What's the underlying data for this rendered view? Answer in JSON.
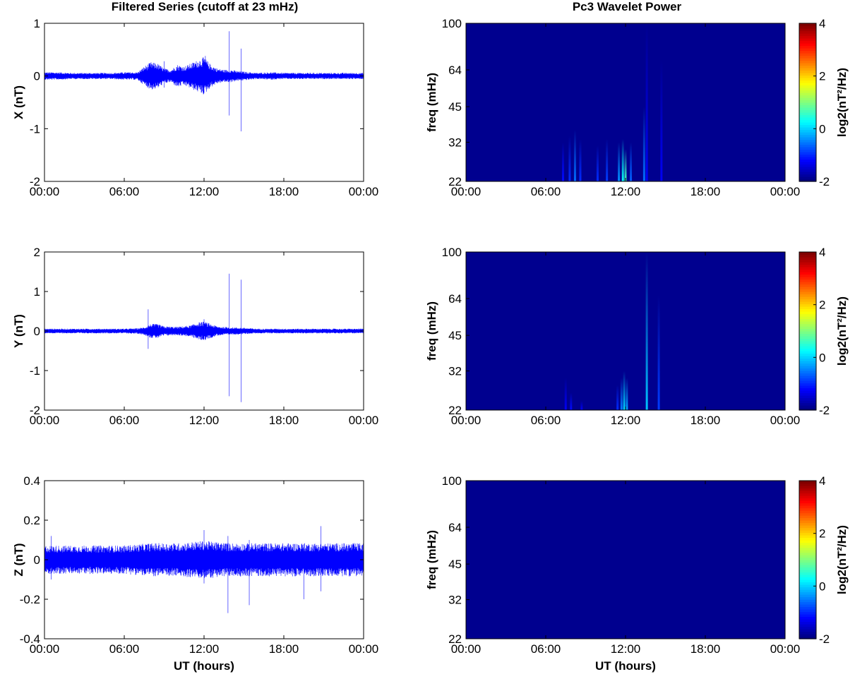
{
  "titles": {
    "left": "Filtered Series (cutoff at 23 mHz)",
    "right": "Pc3 Wavelet Power"
  },
  "colors": {
    "series_line": "#0000ff",
    "spectrogram_background": "#00008f",
    "axes": "#000000",
    "grid_background": "#ffffff"
  },
  "chart_data": [
    {
      "type": "line",
      "title": "Filtered Series (cutoff at 23 mHz)",
      "xlabel": "",
      "ylabel": "X (nT)",
      "xlim": [
        "00:00",
        "00:00"
      ],
      "xticks": [
        "00:00",
        "06:00",
        "12:00",
        "18:00",
        "00:00"
      ],
      "ylim": [
        -2,
        1
      ],
      "yticks": [
        "-2",
        "-1",
        "0",
        "1"
      ],
      "series": [
        {
          "values_note_hours": [
            0,
            1,
            2,
            3,
            4,
            5,
            6,
            7,
            7.5,
            8,
            8.5,
            9,
            9.5,
            10,
            10.5,
            11,
            11.5,
            12,
            12.5,
            13,
            13.5,
            14,
            14.5,
            15,
            16,
            17,
            18,
            19,
            20,
            21,
            22,
            23,
            24
          ],
          "envelope_nT": [
            0.06,
            0.06,
            0.05,
            0.05,
            0.05,
            0.05,
            0.06,
            0.06,
            0.15,
            0.22,
            0.2,
            0.12,
            0.1,
            0.18,
            0.15,
            0.2,
            0.25,
            0.3,
            0.18,
            0.12,
            0.1,
            0.1,
            0.08,
            0.07,
            0.05,
            0.06,
            0.05,
            0.05,
            0.05,
            0.05,
            0.05,
            0.05,
            0.05
          ],
          "spikes": [
            {
              "t": 13.9,
              "max": 0.85,
              "min": -0.75
            },
            {
              "t": 14.8,
              "max": 0.52,
              "min": -1.05
            },
            {
              "t": 12.1,
              "max": 0.38,
              "min": -0.2
            },
            {
              "t": 9.0,
              "max": 0.28,
              "min": -0.22
            }
          ]
        }
      ]
    },
    {
      "type": "line",
      "title": "",
      "xlabel": "",
      "ylabel": "Y (nT)",
      "xlim": [
        "00:00",
        "00:00"
      ],
      "xticks": [
        "00:00",
        "06:00",
        "12:00",
        "18:00",
        "00:00"
      ],
      "ylim": [
        -2,
        2
      ],
      "yticks": [
        "-2",
        "-1",
        "0",
        "1",
        "2"
      ],
      "series": [
        {
          "values_note_hours": [
            0,
            2,
            4,
            6,
            7,
            7.5,
            8,
            8.5,
            9,
            10,
            11,
            11.5,
            12,
            12.5,
            13,
            14,
            15,
            16,
            18,
            20,
            22,
            24
          ],
          "envelope_nT": [
            0.05,
            0.05,
            0.05,
            0.05,
            0.06,
            0.08,
            0.15,
            0.15,
            0.1,
            0.09,
            0.12,
            0.18,
            0.2,
            0.15,
            0.1,
            0.08,
            0.07,
            0.05,
            0.05,
            0.05,
            0.05,
            0.05
          ],
          "spikes": [
            {
              "t": 7.8,
              "max": 0.55,
              "min": -0.45
            },
            {
              "t": 13.9,
              "max": 1.45,
              "min": -1.65
            },
            {
              "t": 14.8,
              "max": 1.3,
              "min": -1.8
            },
            {
              "t": 12.0,
              "max": 0.3,
              "min": -0.2
            }
          ]
        }
      ]
    },
    {
      "type": "line",
      "title": "",
      "xlabel": "UT (hours)",
      "ylabel": "Z (nT)",
      "xlim": [
        "00:00",
        "00:00"
      ],
      "xticks": [
        "00:00",
        "06:00",
        "12:00",
        "18:00",
        "00:00"
      ],
      "ylim": [
        -0.4,
        0.4
      ],
      "yticks": [
        "-0.4",
        "-0.2",
        "0",
        "0.2",
        "0.4"
      ],
      "series": [
        {
          "values_note_hours": [
            0,
            2,
            4,
            6,
            8,
            10,
            12,
            14,
            16,
            18,
            20,
            22,
            24
          ],
          "envelope_nT": [
            0.06,
            0.06,
            0.06,
            0.06,
            0.07,
            0.07,
            0.08,
            0.07,
            0.07,
            0.07,
            0.07,
            0.07,
            0.07
          ],
          "spikes": [
            {
              "t": 13.8,
              "max": 0.12,
              "min": -0.27
            },
            {
              "t": 15.4,
              "max": 0.1,
              "min": -0.23
            },
            {
              "t": 19.5,
              "max": 0.08,
              "min": -0.2
            },
            {
              "t": 20.8,
              "max": 0.17,
              "min": -0.16
            },
            {
              "t": 12.0,
              "max": 0.15,
              "min": -0.12
            },
            {
              "t": 0.5,
              "max": 0.12,
              "min": -0.1
            }
          ]
        }
      ]
    },
    {
      "type": "heatmap",
      "title": "Pc3 Wavelet Power",
      "xlabel": "",
      "ylabel": "freq (mHz)",
      "xticks": [
        "00:00",
        "06:00",
        "12:00",
        "18:00",
        "00:00"
      ],
      "yticks": [
        "22",
        "32",
        "45",
        "64",
        "100"
      ],
      "ylim": [
        22,
        100
      ],
      "yscale": "log",
      "colorbar": {
        "label": "log2(nT²/Hz)",
        "ticks": [
          "-2",
          "0",
          "2",
          "4"
        ],
        "range": [
          -2,
          4
        ],
        "colormap": "jet"
      },
      "bursts": [
        {
          "t": 7.3,
          "fmax": 32,
          "power": -1.2
        },
        {
          "t": 7.8,
          "fmax": 34,
          "power": -1.0
        },
        {
          "t": 8.2,
          "fmax": 36,
          "power": -0.6
        },
        {
          "t": 8.6,
          "fmax": 33,
          "power": -1.0
        },
        {
          "t": 9.9,
          "fmax": 31,
          "power": -1.0
        },
        {
          "t": 10.6,
          "fmax": 33,
          "power": -0.9
        },
        {
          "t": 11.5,
          "fmax": 32,
          "power": -0.4
        },
        {
          "t": 11.8,
          "fmax": 33,
          "power": 0.3
        },
        {
          "t": 12.0,
          "fmax": 30,
          "power": 0.6
        },
        {
          "t": 12.4,
          "fmax": 32,
          "power": -0.7
        },
        {
          "t": 13.4,
          "fmax": 45,
          "power": -0.6
        },
        {
          "t": 13.6,
          "fmax": 100,
          "power": -1.3
        },
        {
          "t": 14.7,
          "fmax": 70,
          "power": -1.3
        }
      ]
    },
    {
      "type": "heatmap",
      "title": "",
      "xlabel": "",
      "ylabel": "freq (mHz)",
      "xticks": [
        "00:00",
        "06:00",
        "12:00",
        "18:00",
        "00:00"
      ],
      "yticks": [
        "22",
        "32",
        "45",
        "64",
        "100"
      ],
      "ylim": [
        22,
        100
      ],
      "yscale": "log",
      "colorbar": {
        "label": "log2(nT²/Hz)",
        "ticks": [
          "-2",
          "0",
          "2",
          "4"
        ],
        "range": [
          -2,
          4
        ],
        "colormap": "jet"
      },
      "bursts": [
        {
          "t": 7.5,
          "fmax": 30,
          "power": -1.3
        },
        {
          "t": 7.9,
          "fmax": 26,
          "power": -1.2
        },
        {
          "t": 8.7,
          "fmax": 24,
          "power": -1.3
        },
        {
          "t": 11.4,
          "fmax": 28,
          "power": -1.0
        },
        {
          "t": 11.7,
          "fmax": 30,
          "power": -0.5
        },
        {
          "t": 11.9,
          "fmax": 32,
          "power": 0.0
        },
        {
          "t": 12.1,
          "fmax": 30,
          "power": -0.3
        },
        {
          "t": 13.6,
          "fmax": 100,
          "power": -0.1
        },
        {
          "t": 14.5,
          "fmax": 66,
          "power": -0.9
        }
      ]
    },
    {
      "type": "heatmap",
      "title": "",
      "xlabel": "UT (hours)",
      "ylabel": "freq (mHz)",
      "xticks": [
        "00:00",
        "06:00",
        "12:00",
        "18:00",
        "00:00"
      ],
      "yticks": [
        "22",
        "32",
        "45",
        "64",
        "100"
      ],
      "ylim": [
        22,
        100
      ],
      "yscale": "log",
      "colorbar": {
        "label": "log2(nT²/Hz)",
        "ticks": [
          "-2",
          "0",
          "2",
          "4"
        ],
        "range": [
          -2,
          4
        ],
        "colormap": "jet"
      },
      "bursts": []
    }
  ]
}
